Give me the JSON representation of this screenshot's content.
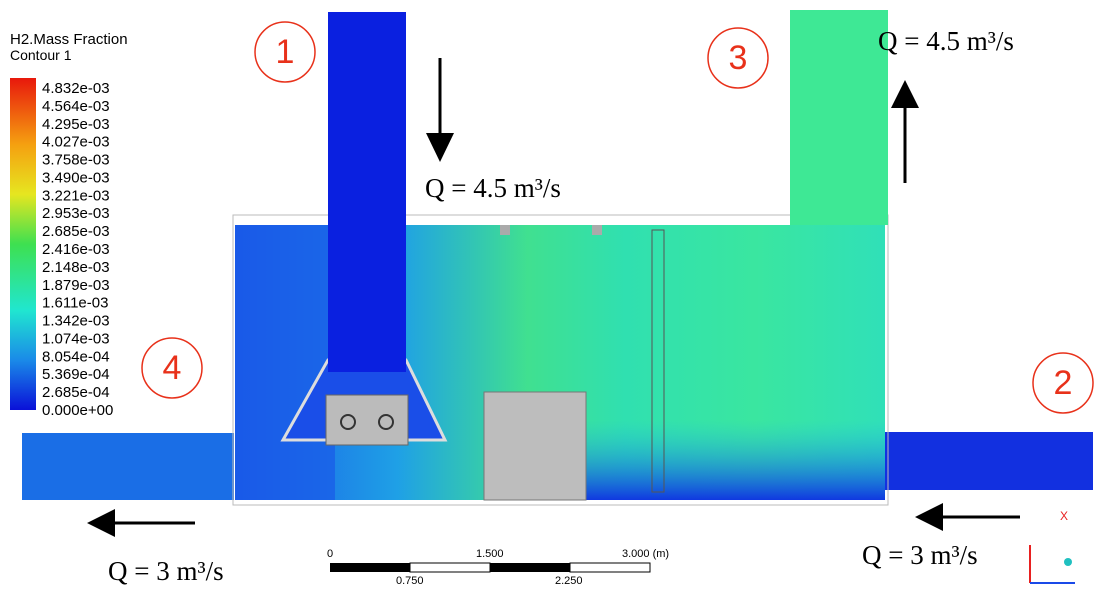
{
  "legend": {
    "title": "H2.Mass Fraction",
    "subtitle": "Contour 1",
    "ticks": [
      "4.832e-03",
      "4.564e-03",
      "4.295e-03",
      "4.027e-03",
      "3.758e-03",
      "3.490e-03",
      "3.221e-03",
      "2.953e-03",
      "2.685e-03",
      "2.416e-03",
      "2.148e-03",
      "1.879e-03",
      "1.611e-03",
      "1.342e-03",
      "1.074e-03",
      "8.054e-04",
      "5.369e-04",
      "2.685e-04",
      "0.000e+00"
    ]
  },
  "markers": [
    {
      "label": "1"
    },
    {
      "label": "2"
    },
    {
      "label": "3"
    },
    {
      "label": "4"
    }
  ],
  "flows": [
    {
      "label": "Q = 4.5 m³/s"
    },
    {
      "label": "Q = 4.5 m³/s"
    },
    {
      "label": "Q = 3 m³/s"
    },
    {
      "label": "Q = 3 m³/s"
    }
  ],
  "scale_bar": {
    "top_labels": [
      "0",
      "1.500",
      "3.000 (m)"
    ],
    "bottom_labels": [
      "0.750",
      "2.250"
    ]
  },
  "triad": {
    "axis_label": "X"
  }
}
